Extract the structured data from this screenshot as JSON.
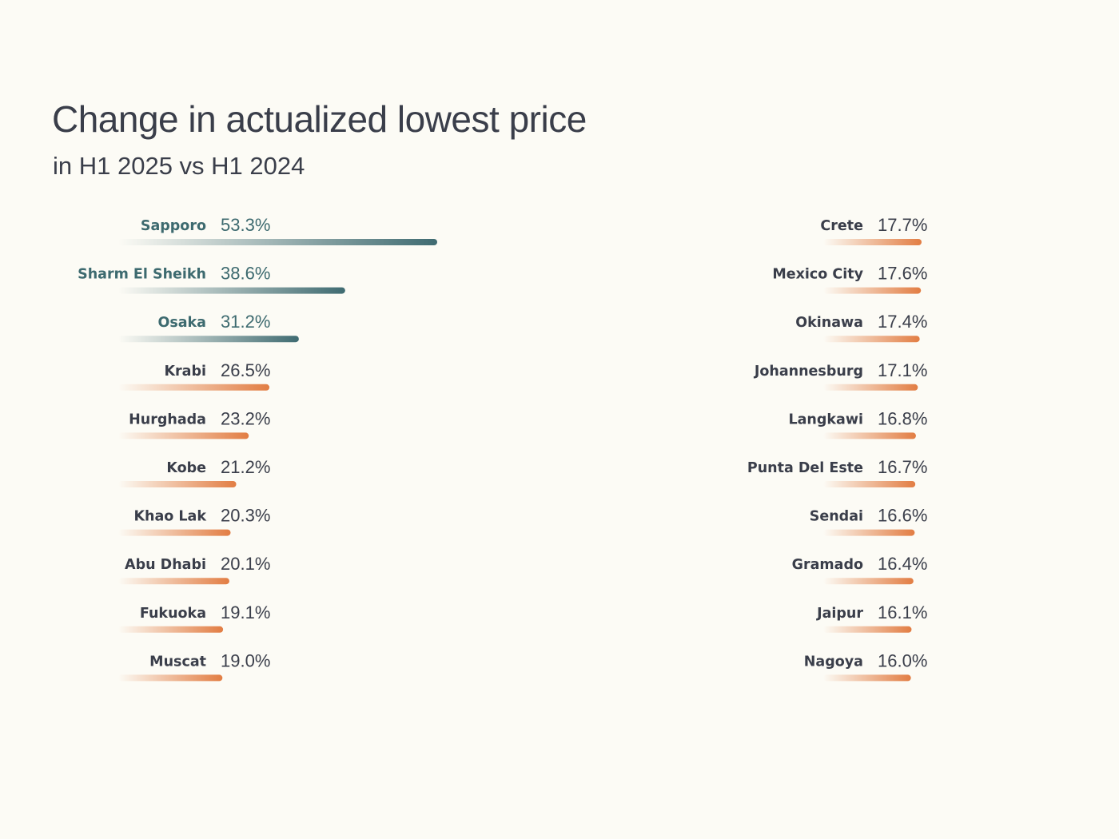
{
  "title": "Change in actualized lowest price",
  "subtitle": "in H1 2025 vs H1 2024",
  "colors": {
    "background": "#fcfbf5",
    "text_dark": "#3a3e4a",
    "highlight_text": "#3d6a6f",
    "highlight_bar": "#3f6b71",
    "regular_bar": "#e27d43"
  },
  "chart_data": {
    "type": "bar",
    "orientation": "horizontal",
    "title": "Change in actualized lowest price",
    "subtitle": "in H1 2025 vs H1 2024",
    "unit": "%",
    "xlim": [
      0,
      53.3
    ],
    "groups": [
      {
        "name": "left",
        "items": [
          {
            "label": "Sapporo",
            "value": 53.3,
            "display": "53.3%",
            "highlight": true
          },
          {
            "label": "Sharm El Sheikh",
            "value": 38.6,
            "display": "38.6%",
            "highlight": true
          },
          {
            "label": "Osaka",
            "value": 31.2,
            "display": "31.2%",
            "highlight": true
          },
          {
            "label": "Krabi",
            "value": 26.5,
            "display": "26.5%",
            "highlight": false
          },
          {
            "label": "Hurghada",
            "value": 23.2,
            "display": "23.2%",
            "highlight": false
          },
          {
            "label": "Kobe",
            "value": 21.2,
            "display": "21.2%",
            "highlight": false
          },
          {
            "label": "Khao Lak",
            "value": 20.3,
            "display": "20.3%",
            "highlight": false
          },
          {
            "label": "Abu Dhabi",
            "value": 20.1,
            "display": "20.1%",
            "highlight": false
          },
          {
            "label": "Fukuoka",
            "value": 19.1,
            "display": "19.1%",
            "highlight": false
          },
          {
            "label": "Muscat",
            "value": 19.0,
            "display": "19.0%",
            "highlight": false
          }
        ]
      },
      {
        "name": "right",
        "items": [
          {
            "label": "Crete",
            "value": 17.7,
            "display": "17.7%",
            "highlight": false
          },
          {
            "label": "Mexico City",
            "value": 17.6,
            "display": "17.6%",
            "highlight": false
          },
          {
            "label": "Okinawa",
            "value": 17.4,
            "display": "17.4%",
            "highlight": false
          },
          {
            "label": "Johannesburg",
            "value": 17.1,
            "display": "17.1%",
            "highlight": false
          },
          {
            "label": "Langkawi",
            "value": 16.8,
            "display": "16.8%",
            "highlight": false
          },
          {
            "label": "Punta Del Este",
            "value": 16.7,
            "display": "16.7%",
            "highlight": false
          },
          {
            "label": "Sendai",
            "value": 16.6,
            "display": "16.6%",
            "highlight": false
          },
          {
            "label": "Gramado",
            "value": 16.4,
            "display": "16.4%",
            "highlight": false
          },
          {
            "label": "Jaipur",
            "value": 16.1,
            "display": "16.1%",
            "highlight": false
          },
          {
            "label": "Nagoya",
            "value": 16.0,
            "display": "16.0%",
            "highlight": false
          }
        ]
      }
    ]
  }
}
